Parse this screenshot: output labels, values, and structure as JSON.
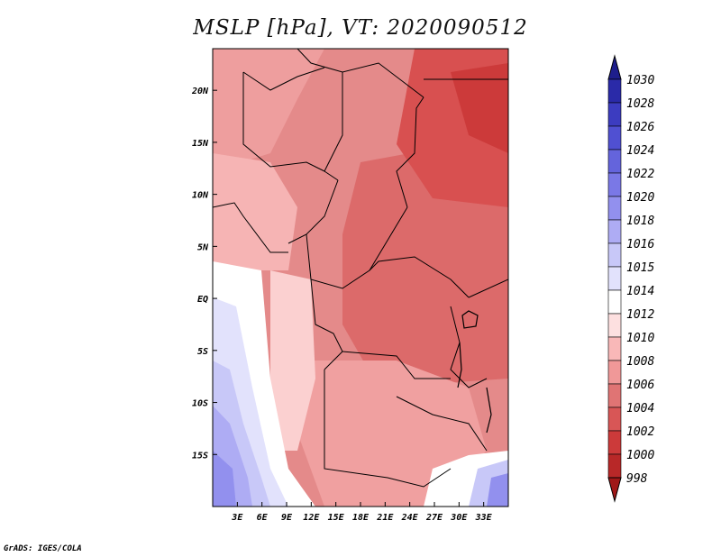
{
  "title": "MSLP [hPa], VT: 2020090512",
  "credit": "GrADS: IGES/COLA",
  "map": {
    "lon_range": [
      0,
      36
    ],
    "lat_range": [
      -20,
      24
    ],
    "x_ticks": [
      "3E",
      "6E",
      "9E",
      "12E",
      "15E",
      "18E",
      "21E",
      "24E",
      "27E",
      "30E",
      "33E"
    ],
    "x_tick_values": [
      3,
      6,
      9,
      12,
      15,
      18,
      21,
      24,
      27,
      30,
      33
    ],
    "y_ticks": [
      "20N",
      "15N",
      "10N",
      "5N",
      "EQ",
      "5S",
      "10S",
      "15S"
    ],
    "y_tick_values": [
      20,
      15,
      10,
      5,
      0,
      -5,
      -10,
      -15
    ]
  },
  "colorbar": {
    "labels": [
      "1030",
      "1028",
      "1026",
      "1024",
      "1022",
      "1020",
      "1018",
      "1016",
      "1015",
      "1014",
      "1012",
      "1010",
      "1008",
      "1006",
      "1004",
      "1002",
      "1000",
      "998"
    ],
    "colors": [
      "#1e1e8c",
      "#2a2aa8",
      "#3c3cc0",
      "#5050d2",
      "#6464dc",
      "#7a78e6",
      "#9290ee",
      "#aeacf4",
      "#c8c8f8",
      "#e2e2fc",
      "#ffffff",
      "#fde0e0",
      "#f9b8b8",
      "#f09898",
      "#e07474",
      "#d85656",
      "#cc3a3a",
      "#b82828",
      "#a01818"
    ]
  },
  "colors": {
    "land_border": "#000000",
    "frame": "#000000"
  }
}
